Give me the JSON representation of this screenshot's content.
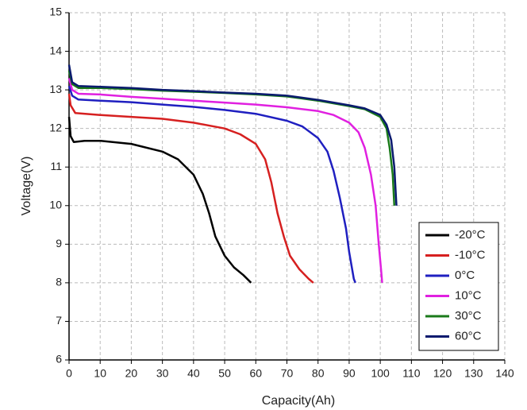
{
  "chart_data": {
    "type": "line",
    "xlabel": "Capacity(Ah)",
    "ylabel": "Voltage(V)",
    "xlim": [
      0,
      140
    ],
    "xticks": [
      0,
      10,
      20,
      30,
      40,
      50,
      60,
      70,
      80,
      90,
      100,
      110,
      120,
      130,
      140
    ],
    "ylim": [
      6,
      15
    ],
    "yticks": [
      6,
      7,
      8,
      9,
      10,
      11,
      12,
      13,
      14,
      15
    ],
    "grid": true,
    "legend": "lower right",
    "series": [
      {
        "name": "-20°C",
        "color": "#000000",
        "x": [
          0,
          0.5,
          1.5,
          5,
          10,
          20,
          30,
          35,
          40,
          43,
          45,
          47,
          50,
          53,
          56,
          58.5
        ],
        "values": [
          12.3,
          11.8,
          11.65,
          11.68,
          11.68,
          11.6,
          11.4,
          11.2,
          10.8,
          10.3,
          9.8,
          9.2,
          8.7,
          8.4,
          8.2,
          8.0
        ]
      },
      {
        "name": "-10°C",
        "color": "#d62020",
        "x": [
          0,
          0.5,
          2,
          10,
          20,
          30,
          40,
          50,
          55,
          60,
          63,
          65,
          67,
          69,
          71,
          74,
          77,
          78.5
        ],
        "values": [
          12.9,
          12.6,
          12.4,
          12.35,
          12.3,
          12.25,
          12.15,
          12.0,
          11.85,
          11.6,
          11.2,
          10.6,
          9.8,
          9.2,
          8.7,
          8.35,
          8.1,
          8.0
        ]
      },
      {
        "name": "0°C",
        "color": "#1f1fc0",
        "x": [
          0,
          1,
          3,
          10,
          20,
          30,
          40,
          50,
          60,
          70,
          75,
          80,
          83,
          85,
          87,
          89,
          90,
          91.5,
          92
        ],
        "values": [
          13.1,
          12.85,
          12.75,
          12.72,
          12.68,
          12.62,
          12.56,
          12.48,
          12.38,
          12.2,
          12.05,
          11.75,
          11.4,
          10.9,
          10.2,
          9.4,
          8.8,
          8.1,
          8.0
        ]
      },
      {
        "name": "10°C",
        "color": "#e020e0",
        "x": [
          0,
          1,
          3,
          10,
          20,
          30,
          40,
          50,
          60,
          70,
          80,
          85,
          90,
          93,
          95,
          97,
          98.5,
          99.5,
          100.3,
          100.6
        ],
        "values": [
          13.3,
          13.0,
          12.9,
          12.88,
          12.82,
          12.77,
          12.72,
          12.67,
          12.62,
          12.55,
          12.45,
          12.35,
          12.15,
          11.9,
          11.5,
          10.8,
          10.0,
          9.0,
          8.3,
          8.0
        ]
      },
      {
        "name": "30°C",
        "color": "#1a7a1a",
        "x": [
          0,
          1,
          3,
          10,
          20,
          30,
          40,
          50,
          60,
          70,
          80,
          90,
          95,
          100,
          102,
          103,
          104,
          104.5
        ],
        "values": [
          13.5,
          13.15,
          13.05,
          13.05,
          13.02,
          12.98,
          12.95,
          12.92,
          12.88,
          12.83,
          12.72,
          12.58,
          12.5,
          12.3,
          12.0,
          11.5,
          10.8,
          10.0
        ]
      },
      {
        "name": "60°C",
        "color": "#0a1a6e",
        "x": [
          0,
          1,
          3,
          10,
          20,
          30,
          40,
          50,
          60,
          70,
          80,
          90,
          95,
          100,
          102,
          103.5,
          104.5,
          105.2
        ],
        "values": [
          13.65,
          13.2,
          13.1,
          13.08,
          13.05,
          13.0,
          12.97,
          12.93,
          12.9,
          12.85,
          12.74,
          12.6,
          12.52,
          12.35,
          12.1,
          11.7,
          11.0,
          10.0
        ]
      }
    ]
  }
}
